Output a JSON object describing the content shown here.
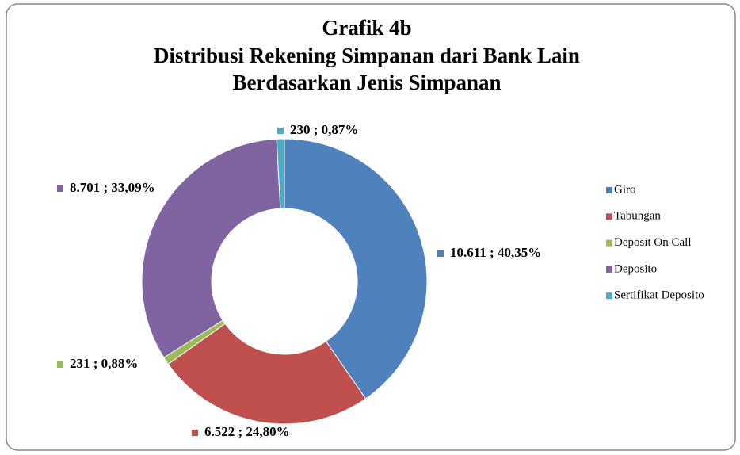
{
  "chart_data": {
    "type": "donut",
    "title": "Grafik 4b",
    "subtitle": [
      "Distribusi Rekening Simpanan dari Bank Lain",
      "Berdasarkan Jenis Simpanan"
    ],
    "categories": [
      "Giro",
      "Tabungan",
      "Deposit On Call",
      "Deposito",
      "Sertifikat Deposito"
    ],
    "values": [
      10611,
      6522,
      231,
      8701,
      230
    ],
    "value_labels": [
      "10.611 ; 40,35%",
      "6.522 ; 24,80%",
      "231 ; 0,88%",
      "8.701 ; 33,09%",
      "230 ; 0,87%"
    ],
    "colors": [
      "#4f81bd",
      "#c0504d",
      "#9bbb59",
      "#8064a2",
      "#4bacc6"
    ],
    "legend": "right"
  }
}
